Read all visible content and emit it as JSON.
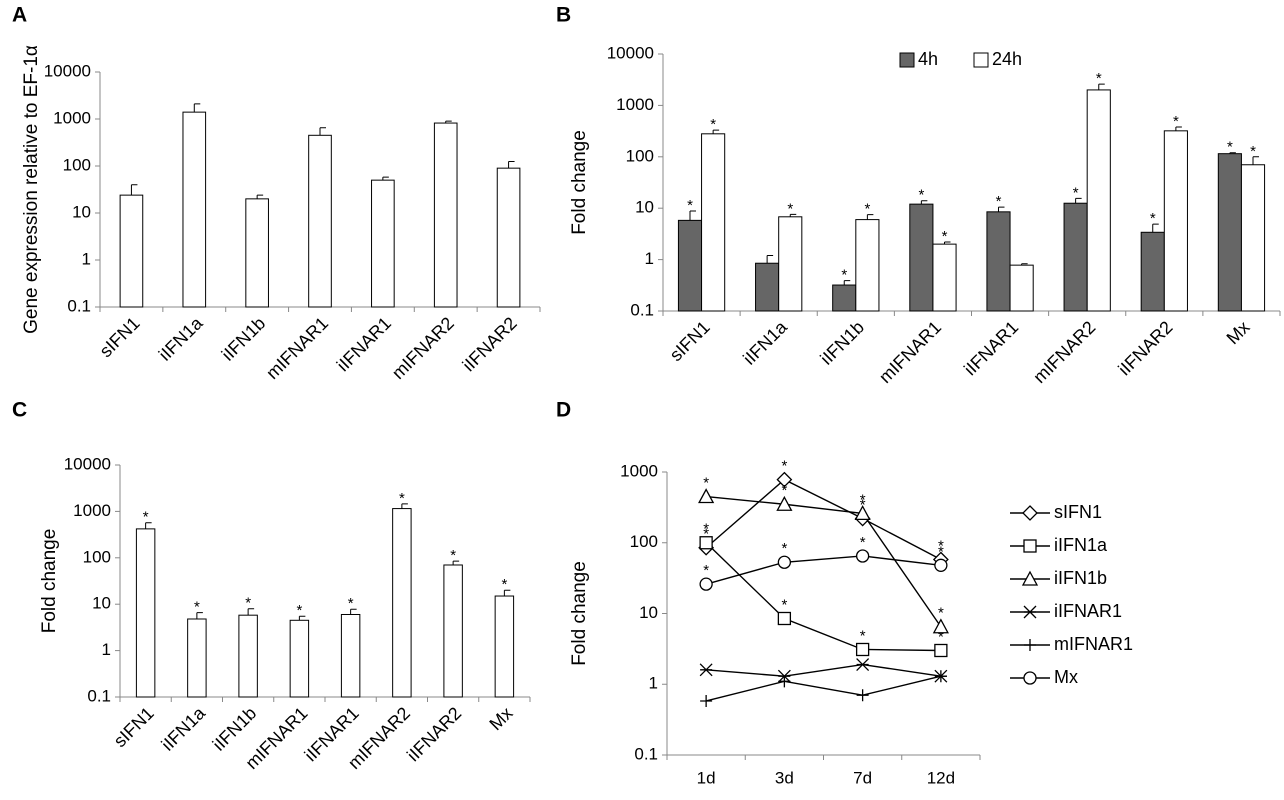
{
  "chart_data": [
    {
      "panel": "A",
      "type": "bar",
      "log_y": true,
      "ylabel": "Gene expression relative to EF-1α",
      "categories": [
        "sIFN1",
        "iIFN1a",
        "iIFN1b",
        "mIFNAR1",
        "iIFNAR1",
        "mIFNAR2",
        "iIFNAR2"
      ],
      "values": [
        24,
        1400,
        20,
        450,
        50,
        820,
        90
      ],
      "errors": [
        16,
        700,
        4,
        200,
        8,
        80,
        35
      ],
      "color": "#ffffff",
      "ylim": [
        0.1,
        10000
      ],
      "yticks": [
        0.1,
        1,
        10,
        100,
        1000,
        10000
      ]
    },
    {
      "panel": "B",
      "type": "bar",
      "log_y": true,
      "ylabel": "Fold change",
      "legend": "top",
      "categories": [
        "sIFN1",
        "iIFN1a",
        "iIFN1b",
        "mIFNAR1",
        "iIFNAR1",
        "mIFNAR2",
        "iIFNAR2",
        "Mx"
      ],
      "series": [
        {
          "name": "4h",
          "color": "#666666",
          "values": [
            5.8,
            0.85,
            0.32,
            12,
            8.5,
            12.5,
            3.4,
            115
          ],
          "errors": [
            3,
            0.35,
            0.07,
            2,
            2,
            3,
            1.5,
            5
          ],
          "labels": [
            "*",
            null,
            "*",
            "*",
            "*",
            "*",
            "*",
            "*"
          ]
        },
        {
          "name": "24h",
          "color": "#ffffff",
          "values": [
            280,
            6.8,
            6,
            2,
            0.78,
            2000,
            320,
            70
          ],
          "errors": [
            50,
            0.8,
            1.5,
            0.2,
            0.05,
            600,
            60,
            30
          ],
          "labels": [
            "*",
            "*",
            "*",
            "*",
            null,
            "*",
            "*",
            "*"
          ]
        }
      ],
      "ylim": [
        0.1,
        10000
      ],
      "yticks": [
        0.1,
        1,
        10,
        100,
        1000,
        10000
      ]
    },
    {
      "panel": "C",
      "type": "bar",
      "log_y": true,
      "ylabel": "Fold change",
      "categories": [
        "sIFN1",
        "iIFN1a",
        "iIFN1b",
        "mIFNAR1",
        "iIFNAR1",
        "mIFNAR2",
        "iIFNAR2",
        "Mx"
      ],
      "values": [
        420,
        4.8,
        5.8,
        4.5,
        6,
        1150,
        70,
        15
      ],
      "errors": [
        150,
        1.8,
        2.2,
        1,
        1.8,
        300,
        15,
        5
      ],
      "labels": [
        "*",
        "*",
        "*",
        "*",
        "*",
        "*",
        "*",
        "*"
      ],
      "color": "#ffffff",
      "ylim": [
        0.1,
        10000
      ],
      "yticks": [
        0.1,
        1,
        10,
        100,
        1000,
        10000
      ]
    },
    {
      "panel": "D",
      "type": "line",
      "log_y": true,
      "ylabel": "Fold change",
      "legend": "right",
      "categories": [
        "1d",
        "3d",
        "7d",
        "12d"
      ],
      "series": [
        {
          "name": "sIFN1",
          "color": "#000000",
          "marker": "diamond",
          "values": [
            85,
            780,
            220,
            58
          ],
          "labels": [
            "*",
            "*",
            "*",
            "*"
          ]
        },
        {
          "name": "iIFN1a",
          "color": "#000000",
          "marker": "square",
          "values": [
            100,
            8.5,
            3.1,
            3
          ],
          "labels": [
            "*",
            "*",
            "*",
            "*"
          ]
        },
        {
          "name": "iIFN1b",
          "color": "#000000",
          "marker": "triangle",
          "values": [
            450,
            350,
            260,
            6.5
          ],
          "labels": [
            "*",
            "*",
            "*",
            "*"
          ]
        },
        {
          "name": "iIFNAR1",
          "color": "#000000",
          "marker": "x",
          "values": [
            1.6,
            1.3,
            1.9,
            1.3
          ]
        },
        {
          "name": "mIFNAR1",
          "color": "#000000",
          "marker": "plus",
          "values": [
            0.58,
            1.1,
            0.7,
            1.3
          ]
        },
        {
          "name": "Mx",
          "color": "#000000",
          "marker": "circle",
          "values": [
            26,
            53,
            65,
            48
          ],
          "labels": [
            "*",
            "*",
            "*",
            "*"
          ]
        }
      ],
      "ylim": [
        0.1,
        1000
      ],
      "yticks": [
        0.1,
        1,
        10,
        100,
        1000
      ]
    }
  ]
}
